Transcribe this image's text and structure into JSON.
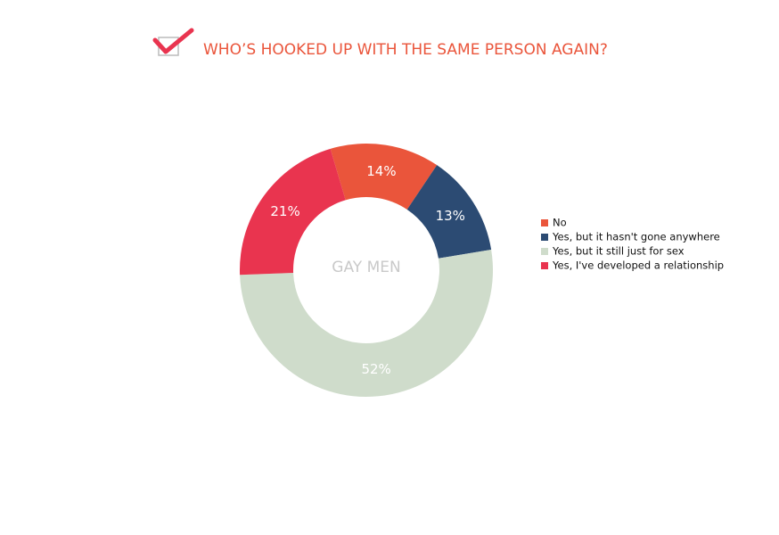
{
  "chart_data": {
    "type": "donut",
    "title": "WHO’S HOOKED UP WITH THE SAME PERSON AGAIN?",
    "center_label": "GAY MEN",
    "categories": [
      "No",
      "Yes, but it hasn't gone anywhere",
      "Yes, but it still just for sex",
      "Yes, I've developed a relationship"
    ],
    "values": [
      14,
      13,
      52,
      21
    ],
    "value_labels": [
      "14%",
      "13%",
      "52%",
      "21%"
    ],
    "colors": [
      "#ea553b",
      "#2c4b73",
      "#cfdccb",
      "#e9344f"
    ]
  }
}
